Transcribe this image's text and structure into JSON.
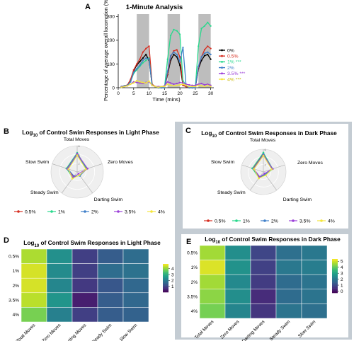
{
  "colors": {
    "c0": "#000000",
    "c05": "#d62d20",
    "c1": "#27d98c",
    "c2": "#3f7fc9",
    "c35": "#9b3fd8",
    "c4": "#f5e63b",
    "shade": "#bdbdbd"
  },
  "panels": {
    "a": {
      "letter": "A",
      "title": "1-Minute Analysis"
    },
    "b": {
      "letter": "B",
      "title_pre": "Log",
      "title_sub": "10",
      "title_post": " of Control Swim Responses in Light Phase"
    },
    "c": {
      "letter": "C",
      "title_pre": "Log",
      "title_sub": "10",
      "title_post": " of Control Swim Responses in Dark Phase"
    },
    "d": {
      "letter": "D",
      "title_pre": "Log",
      "title_sub": "10",
      "title_post": " of Control Swim Responses in Light Phase"
    },
    "e": {
      "letter": "E",
      "title_pre": "Log",
      "title_sub": "10",
      "title_post": " of Control Swim Responses in Dark Phase"
    }
  },
  "chart_data": [
    {
      "id": "A",
      "type": "line",
      "title": "1-Minute Analysis",
      "xlabel": "Time (mins)",
      "ylabel": "Percentage of average overall locomotion (%)",
      "xlim": [
        0,
        31
      ],
      "ylim": [
        0,
        310
      ],
      "xticks": [
        0,
        5,
        10,
        15,
        20,
        25,
        30
      ],
      "yticks": [
        0,
        100,
        200,
        300
      ],
      "dark_periods": [
        [
          6,
          10
        ],
        [
          16,
          20
        ],
        [
          26,
          30
        ]
      ],
      "x": [
        1,
        2,
        3,
        4,
        5,
        6,
        7,
        8,
        9,
        10,
        11,
        12,
        13,
        14,
        15,
        16,
        17,
        18,
        19,
        20,
        21,
        22,
        23,
        24,
        25,
        26,
        27,
        28,
        29,
        30
      ],
      "series": [
        {
          "name": "0%",
          "color_key": "c0",
          "values": [
            5,
            8,
            10,
            30,
            70,
            95,
            110,
            125,
            140,
            115,
            10,
            5,
            0,
            0,
            0,
            55,
            115,
            140,
            130,
            95,
            10,
            5,
            0,
            0,
            0,
            80,
            115,
            135,
            140,
            120
          ]
        },
        {
          "name": "0.5%",
          "color_key": "c05",
          "values": [
            5,
            8,
            12,
            35,
            75,
            100,
            120,
            150,
            165,
            175,
            15,
            5,
            0,
            0,
            0,
            60,
            130,
            155,
            160,
            130,
            10,
            5,
            0,
            0,
            0,
            85,
            130,
            160,
            175,
            165
          ]
        },
        {
          "name": "1% ***",
          "color_key": "c1",
          "values": [
            3,
            6,
            10,
            25,
            60,
            75,
            90,
            105,
            115,
            125,
            10,
            5,
            0,
            0,
            0,
            120,
            220,
            245,
            240,
            225,
            30,
            10,
            0,
            0,
            0,
            175,
            250,
            260,
            275,
            260
          ]
        },
        {
          "name": "2%",
          "color_key": "c2",
          "values": [
            5,
            8,
            10,
            25,
            65,
            80,
            95,
            115,
            125,
            120,
            10,
            5,
            0,
            0,
            0,
            70,
            135,
            150,
            140,
            110,
            170,
            10,
            0,
            0,
            0,
            90,
            130,
            145,
            150,
            140
          ]
        },
        {
          "name": "3.5% ***",
          "color_key": "c35",
          "values": [
            3,
            5,
            8,
            15,
            25,
            22,
            20,
            18,
            22,
            25,
            10,
            5,
            5,
            5,
            8,
            25,
            20,
            15,
            18,
            22,
            20,
            15,
            12,
            10,
            10,
            15,
            18,
            12,
            15,
            10
          ]
        },
        {
          "name": "4% ***",
          "color_key": "c4",
          "values": [
            2,
            5,
            8,
            15,
            20,
            30,
            25,
            22,
            20,
            28,
            10,
            5,
            2,
            5,
            5,
            15,
            10,
            8,
            10,
            12,
            15,
            10,
            5,
            5,
            5,
            10,
            8,
            5,
            10,
            5
          ]
        }
      ]
    },
    {
      "id": "B",
      "type": "radar",
      "axes": [
        "Total Moves",
        "Zero Moves",
        "Darting Swim",
        "Steady Swim",
        "Slow Swim"
      ],
      "rings": [
        "0",
        "2",
        "4",
        "6"
      ],
      "rmax": 6,
      "legend": [
        "0.5%",
        "1%",
        "2%",
        "3.5%",
        "4%"
      ],
      "series": [
        {
          "name": "0.5%",
          "color_key": "c05",
          "values": [
            4.2,
            2.4,
            1.0,
            1.4,
            2.5
          ]
        },
        {
          "name": "1%",
          "color_key": "c1",
          "values": [
            4.4,
            2.3,
            0.9,
            1.7,
            2.6
          ]
        },
        {
          "name": "2%",
          "color_key": "c2",
          "values": [
            4.0,
            2.2,
            1.1,
            1.2,
            2.3
          ]
        },
        {
          "name": "3.5%",
          "color_key": "c35",
          "values": [
            4.2,
            2.5,
            0.5,
            1.5,
            2.4
          ]
        },
        {
          "name": "4%",
          "color_key": "c4",
          "values": [
            3.8,
            2.1,
            0.9,
            1.9,
            2.1
          ]
        }
      ]
    },
    {
      "id": "C",
      "type": "radar",
      "axes": [
        "Total Moves",
        "Zero Moves",
        "Darting Swim",
        "Steady Swim",
        "Slow Swim"
      ],
      "rings": [
        "0",
        "2",
        "4",
        "6"
      ],
      "rmax": 6,
      "legend": [
        "0.5%",
        "1%",
        "2%",
        "3.5%",
        "4%"
      ],
      "series": [
        {
          "name": "0.5%",
          "color_key": "c05",
          "values": [
            4.9,
            2.5,
            0.9,
            1.8,
            2.9
          ]
        },
        {
          "name": "1%",
          "color_key": "c1",
          "values": [
            5.1,
            2.6,
            1.0,
            2.0,
            3.1
          ]
        },
        {
          "name": "2%",
          "color_key": "c2",
          "values": [
            4.7,
            2.4,
            0.8,
            1.7,
            2.8
          ]
        },
        {
          "name": "3.5%",
          "color_key": "c35",
          "values": [
            4.5,
            2.6,
            0.5,
            1.6,
            2.7
          ]
        },
        {
          "name": "4%",
          "color_key": "c4",
          "values": [
            4.3,
            2.3,
            1.1,
            2.1,
            2.6
          ]
        }
      ]
    },
    {
      "id": "D",
      "type": "heatmap",
      "rows": [
        "0.5%",
        "1%",
        "2%",
        "3.5%",
        "4%"
      ],
      "cols": [
        "Total Moves",
        "Zero Moves",
        "Darting Moves",
        "Steady Swim",
        "Slow Swim"
      ],
      "values": [
        [
          4.2,
          2.4,
          0.9,
          1.4,
          1.7
        ],
        [
          4.5,
          2.3,
          0.9,
          1.7,
          1.8
        ],
        [
          4.5,
          2.2,
          0.8,
          1.3,
          1.6
        ],
        [
          4.3,
          2.5,
          0.4,
          1.4,
          1.6
        ],
        [
          3.8,
          2.1,
          0.9,
          1.4,
          1.5
        ]
      ],
      "zmin": 0,
      "zmax": 4.8,
      "colorbar_ticks": [
        1,
        2,
        3,
        4
      ]
    },
    {
      "id": "E",
      "type": "heatmap",
      "rows": [
        "0.5%",
        "1%",
        "2%",
        "3.5%",
        "4%"
      ],
      "cols": [
        "Total Moves",
        "Zero Moves",
        "Darting Moves",
        "Steady Swim",
        "Slow Swim"
      ],
      "values": [
        [
          4.6,
          2.5,
          0.9,
          1.8,
          2.0
        ],
        [
          5.1,
          2.6,
          0.8,
          2.0,
          2.1
        ],
        [
          4.6,
          2.4,
          0.7,
          1.7,
          1.9
        ],
        [
          4.4,
          2.5,
          0.4,
          1.7,
          1.9
        ],
        [
          4.2,
          2.3,
          0.6,
          1.9,
          1.8
        ]
      ],
      "zmin": -0.3,
      "zmax": 5.4,
      "colorbar_ticks": [
        0,
        1,
        2,
        3,
        4,
        5
      ]
    }
  ]
}
